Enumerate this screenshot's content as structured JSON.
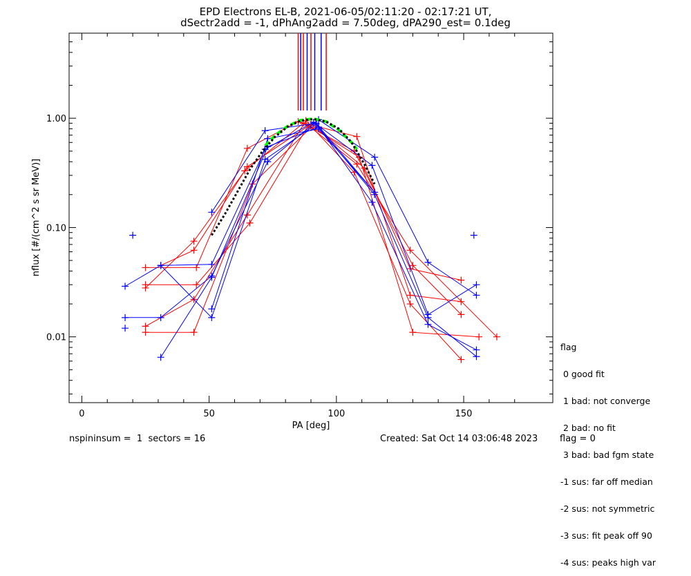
{
  "header": {
    "line1": "EPD Electrons EL-B, 2021-06-05/02:11:20 - 02:17:21 UT,",
    "line2": "dSectr2add = -1, dPhAng2add = 7.50deg, dPA290_est=   0.1deg"
  },
  "footer": {
    "left": "nspininsum =  1  sectors = 16",
    "created": "Created: Sat Oct 14 03:06:48 2023",
    "flag": "flag = 0"
  },
  "legend": {
    "title": "flag",
    "items": [
      " 0 good fit",
      " 1 bad: not converge",
      " 2 bad: no fit",
      " 3 bad: bad fgm state",
      "-1 sus: far off median",
      "-2 sus: not symmetric",
      "-3 sus: fit peak off 90",
      "-4 sus: peaks high var"
    ]
  },
  "colors": {
    "red": "#ff0000",
    "blue": "#0000ff",
    "fit_black": "#000000",
    "fit_green": "#00ff00"
  },
  "chart_data": {
    "type": "line",
    "xlabel": "PA [deg]",
    "ylabel": "nflux [#/(cm^2 s sr MeV)]",
    "xlim": [
      -5,
      185
    ],
    "ylim": [
      0.0025,
      6.0
    ],
    "yscale": "log",
    "xticks": [
      0,
      50,
      100,
      150
    ],
    "xtick_labels": [
      "0",
      "50",
      "100",
      "150"
    ],
    "yticks": [
      0.01,
      0.1,
      1.0
    ],
    "ytick_labels": [
      "0.01",
      "0.10",
      "1.00"
    ],
    "grid": false,
    "peak_markers": [
      {
        "x": 85.0,
        "color": "red"
      },
      {
        "x": 86.0,
        "color": "blue"
      },
      {
        "x": 87.0,
        "color": "red"
      },
      {
        "x": 88.5,
        "color": "blue"
      },
      {
        "x": 90.0,
        "color": "red"
      },
      {
        "x": 91.5,
        "color": "blue"
      },
      {
        "x": 94.0,
        "color": "blue"
      },
      {
        "x": 96.0,
        "color": "red"
      }
    ],
    "series": [
      {
        "color": "red",
        "x": [
          25,
          45,
          65,
          85,
          108,
          129,
          149
        ],
        "y": [
          0.043,
          0.043,
          0.53,
          0.93,
          0.68,
          0.024,
          0.021
        ]
      },
      {
        "color": "red",
        "x": [
          25,
          44,
          64,
          87,
          107,
          130,
          149
        ],
        "y": [
          0.028,
          0.075,
          0.33,
          0.9,
          0.5,
          0.045,
          0.016
        ]
      },
      {
        "color": "red",
        "x": [
          25,
          45,
          66,
          89,
          109,
          130,
          156
        ],
        "y": [
          0.03,
          0.03,
          0.11,
          0.86,
          0.44,
          0.011,
          0.01
        ]
      },
      {
        "color": "red",
        "x": [
          25,
          44,
          65,
          88,
          107,
          129,
          149
        ],
        "y": [
          0.0125,
          0.022,
          0.13,
          0.95,
          0.32,
          0.02,
          0.0062
        ]
      },
      {
        "color": "red",
        "x": [
          25,
          44,
          67,
          90,
          108,
          129,
          163
        ],
        "y": [
          0.011,
          0.011,
          0.25,
          0.82,
          0.38,
          0.062,
          0.01
        ]
      },
      {
        "color": "red",
        "x": [
          31,
          44,
          65,
          90,
          111,
          129,
          149
        ],
        "y": [
          0.045,
          0.062,
          0.36,
          0.88,
          0.35,
          0.042,
          0.033
        ]
      },
      {
        "color": "blue",
        "x": [
          17,
          31,
          51,
          73,
          93,
          115,
          136,
          155
        ],
        "y": [
          0.015,
          0.015,
          0.036,
          0.4,
          0.97,
          0.44,
          0.048,
          0.024
        ]
      },
      {
        "color": "blue",
        "x": [
          17,
          31,
          51,
          72,
          91,
          114,
          136,
          155
        ],
        "y": [
          0.029,
          0.045,
          0.046,
          0.52,
          0.92,
          0.37,
          0.016,
          0.03
        ]
      },
      {
        "color": "blue",
        "x": [
          31,
          51,
          73,
          93,
          114,
          136,
          155
        ],
        "y": [
          0.0065,
          0.035,
          0.55,
          0.83,
          0.17,
          0.013,
          0.0076
        ]
      },
      {
        "color": "blue",
        "x": [
          31,
          51,
          72,
          92,
          115,
          136,
          155
        ],
        "y": [
          0.045,
          0.015,
          0.42,
          0.88,
          0.2,
          0.015,
          0.0066
        ]
      },
      {
        "color": "blue",
        "x": [
          51,
          72,
          92,
          115
        ],
        "y": [
          0.138,
          0.77,
          0.9,
          0.21
        ]
      },
      {
        "color": "blue",
        "x": [
          51,
          73,
          93,
          115
        ],
        "y": [
          0.018,
          0.65,
          0.8,
          0.21
        ]
      }
    ],
    "outliers": [
      {
        "color": "blue",
        "x": 17,
        "y": 0.012
      },
      {
        "color": "blue",
        "x": 20,
        "y": 0.085
      },
      {
        "color": "blue",
        "x": 154,
        "y": 0.085
      }
    ],
    "fit_black": {
      "x": [
        51,
        56,
        61,
        66,
        71,
        76,
        81,
        86,
        91,
        96,
        101,
        106,
        111,
        115
      ],
      "y": [
        0.085,
        0.13,
        0.21,
        0.34,
        0.5,
        0.68,
        0.84,
        0.95,
        0.98,
        0.93,
        0.8,
        0.6,
        0.38,
        0.25
      ]
    },
    "fit_green": {
      "x": [
        72,
        76,
        81,
        86,
        91,
        96,
        101,
        106,
        108
      ],
      "y": [
        0.56,
        0.7,
        0.85,
        0.96,
        0.99,
        0.93,
        0.78,
        0.6,
        0.52
      ]
    }
  }
}
